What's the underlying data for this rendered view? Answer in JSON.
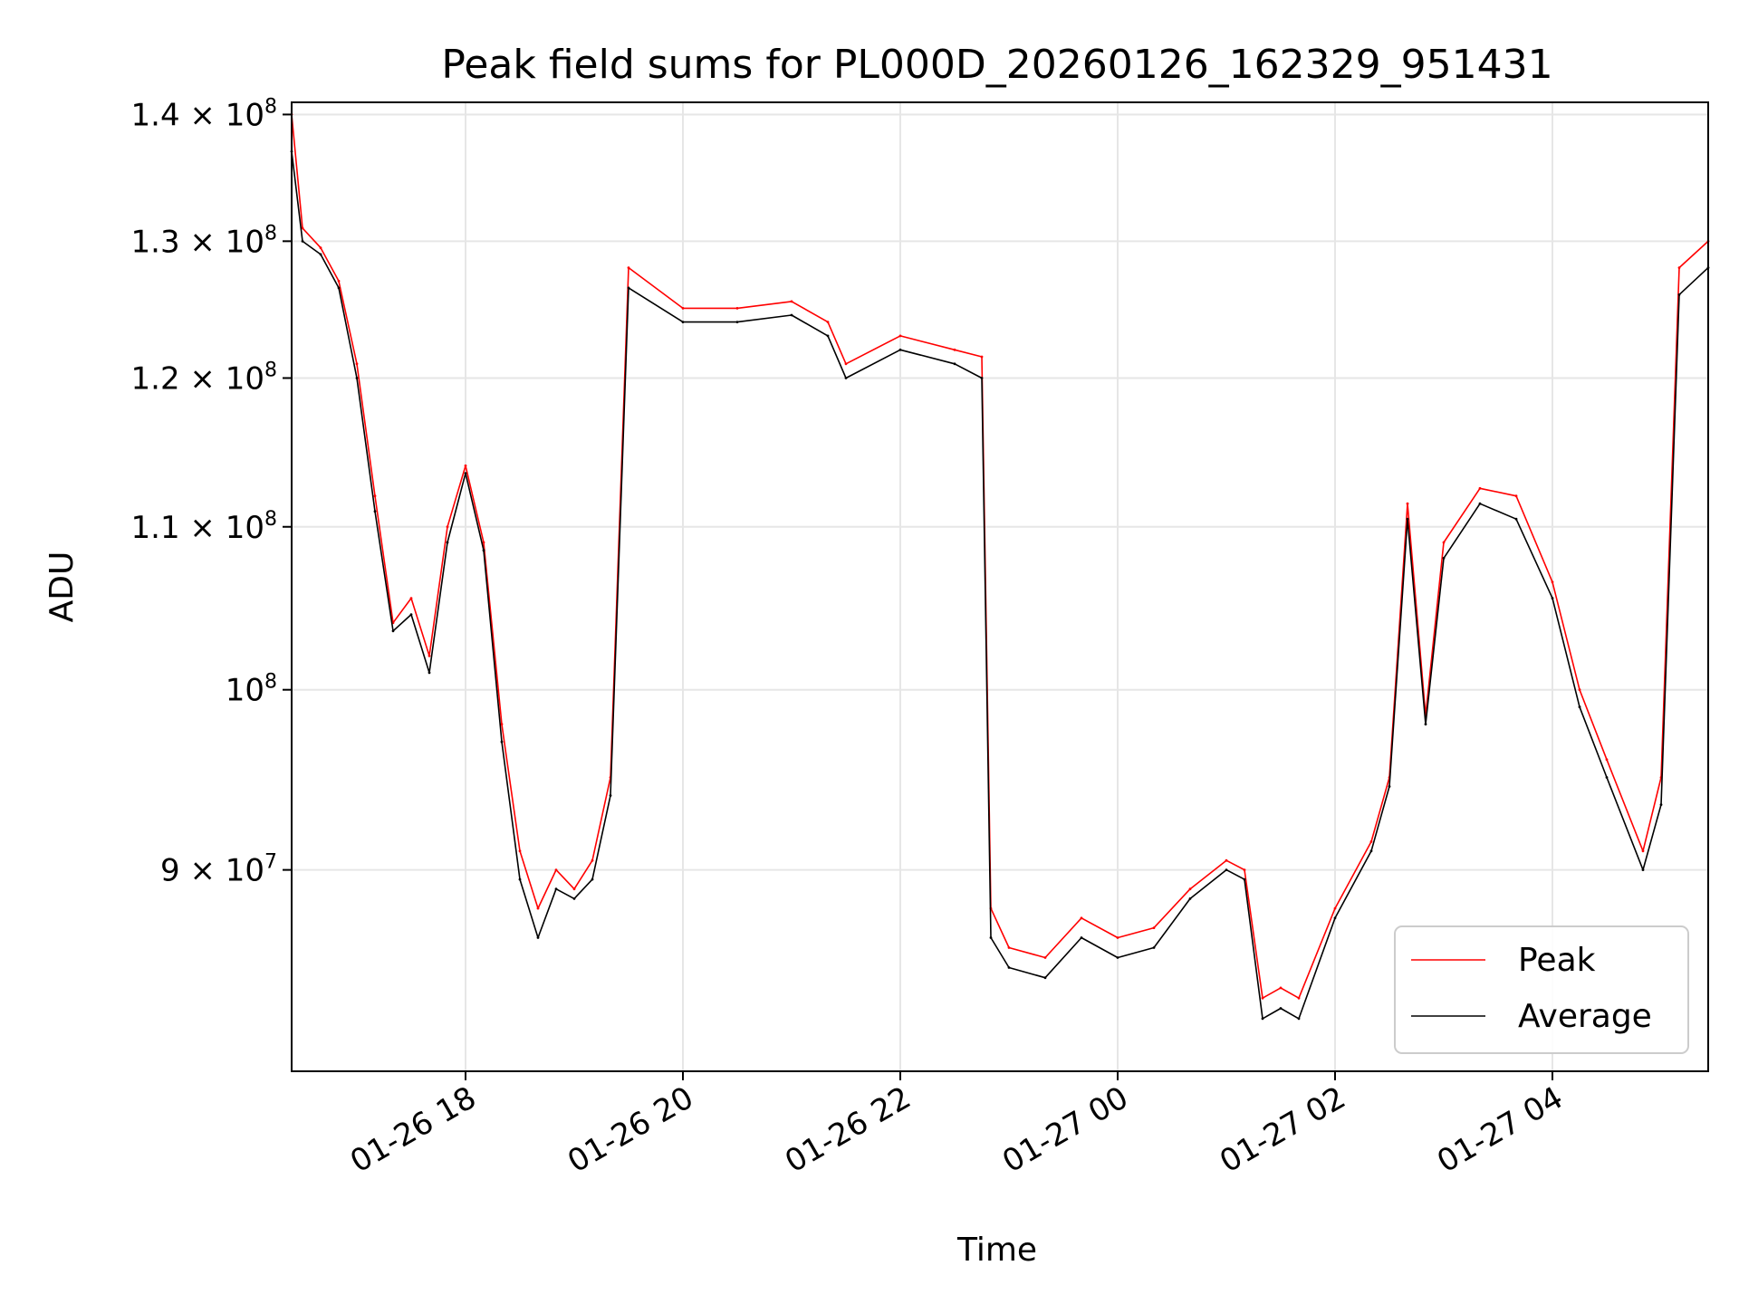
{
  "chart_data": {
    "type": "line",
    "title": "Peak field sums for PL000D_20260126_162329_951431",
    "xlabel": "Time",
    "ylabel": "ADU",
    "y_scale": "log",
    "ylim": [
      80000000,
      141000000
    ],
    "x_range_hours": [
      "2026-01-26T16:24",
      "2026-01-27T05:26"
    ],
    "x_ticks": [
      {
        "label": "01-26 18",
        "t": "2026-01-26T18:00"
      },
      {
        "label": "01-26 20",
        "t": "2026-01-26T20:00"
      },
      {
        "label": "01-26 22",
        "t": "2026-01-26T22:00"
      },
      {
        "label": "01-27 00",
        "t": "2026-01-27T00:00"
      },
      {
        "label": "01-27 02",
        "t": "2026-01-27T02:00"
      },
      {
        "label": "01-27 04",
        "t": "2026-01-27T04:00"
      }
    ],
    "y_ticks": [
      {
        "value": 90000000,
        "mantissa": "9",
        "exp": "7",
        "label": "9 × 10^7"
      },
      {
        "value": 100000000,
        "mantissa": "",
        "exp": "8",
        "label": "10^8"
      },
      {
        "value": 110000000,
        "mantissa": "1.1",
        "exp": "8",
        "label": "1.1 × 10^8"
      },
      {
        "value": 120000000,
        "mantissa": "1.2",
        "exp": "8",
        "label": "1.2 × 10^8"
      },
      {
        "value": 130000000,
        "mantissa": "1.3",
        "exp": "8",
        "label": "1.3 × 10^8"
      },
      {
        "value": 140000000,
        "mantissa": "1.4",
        "exp": "8",
        "label": "1.4 × 10^8"
      }
    ],
    "grid": true,
    "legend_position": "lower right",
    "series": [
      {
        "name": "Peak",
        "color": "#ff0000",
        "x": [
          "2026-01-26T16:24",
          "2026-01-26T16:30",
          "2026-01-26T16:40",
          "2026-01-26T16:50",
          "2026-01-26T17:00",
          "2026-01-26T17:10",
          "2026-01-26T17:20",
          "2026-01-26T17:30",
          "2026-01-26T17:40",
          "2026-01-26T17:50",
          "2026-01-26T18:00",
          "2026-01-26T18:10",
          "2026-01-26T18:20",
          "2026-01-26T18:30",
          "2026-01-26T18:40",
          "2026-01-26T18:50",
          "2026-01-26T19:00",
          "2026-01-26T19:10",
          "2026-01-26T19:20",
          "2026-01-26T19:30",
          "2026-01-26T20:00",
          "2026-01-26T20:30",
          "2026-01-26T21:00",
          "2026-01-26T21:20",
          "2026-01-26T21:30",
          "2026-01-26T22:00",
          "2026-01-26T22:30",
          "2026-01-26T22:45",
          "2026-01-26T22:50",
          "2026-01-26T23:00",
          "2026-01-26T23:20",
          "2026-01-26T23:40",
          "2026-01-27T00:00",
          "2026-01-27T00:20",
          "2026-01-27T00:40",
          "2026-01-27T01:00",
          "2026-01-27T01:10",
          "2026-01-27T01:20",
          "2026-01-27T01:30",
          "2026-01-27T01:40",
          "2026-01-27T02:00",
          "2026-01-27T02:20",
          "2026-01-27T02:30",
          "2026-01-27T02:40",
          "2026-01-27T02:50",
          "2026-01-27T03:00",
          "2026-01-27T03:20",
          "2026-01-27T03:40",
          "2026-01-27T04:00",
          "2026-01-27T04:15",
          "2026-01-27T04:30",
          "2026-01-27T04:50",
          "2026-01-27T05:00",
          "2026-01-27T05:10",
          "2026-01-27T05:26"
        ],
        "values": [
          140000000,
          131000000,
          129500000,
          127000000,
          121000000,
          112000000,
          104000000,
          105500000,
          102000000,
          110000000,
          114000000,
          109000000,
          98000000,
          91000000,
          88000000,
          90000000,
          89000000,
          90500000,
          95000000,
          128000000,
          125000000,
          125000000,
          125500000,
          124000000,
          121000000,
          123000000,
          122000000,
          121500000,
          88000000,
          86000000,
          85500000,
          87500000,
          86500000,
          87000000,
          89000000,
          90500000,
          90000000,
          83500000,
          84000000,
          83500000,
          88000000,
          91500000,
          95000000,
          111500000,
          98500000,
          109000000,
          112500000,
          112000000,
          106500000,
          100000000,
          96000000,
          91000000,
          95000000,
          128000000,
          130000000
        ]
      },
      {
        "name": "Average",
        "color": "#000000",
        "x": [
          "2026-01-26T16:24",
          "2026-01-26T16:30",
          "2026-01-26T16:40",
          "2026-01-26T16:50",
          "2026-01-26T17:00",
          "2026-01-26T17:10",
          "2026-01-26T17:20",
          "2026-01-26T17:30",
          "2026-01-26T17:40",
          "2026-01-26T17:50",
          "2026-01-26T18:00",
          "2026-01-26T18:10",
          "2026-01-26T18:20",
          "2026-01-26T18:30",
          "2026-01-26T18:40",
          "2026-01-26T18:50",
          "2026-01-26T19:00",
          "2026-01-26T19:10",
          "2026-01-26T19:20",
          "2026-01-26T19:30",
          "2026-01-26T20:00",
          "2026-01-26T20:30",
          "2026-01-26T21:00",
          "2026-01-26T21:20",
          "2026-01-26T21:30",
          "2026-01-26T22:00",
          "2026-01-26T22:30",
          "2026-01-26T22:45",
          "2026-01-26T22:50",
          "2026-01-26T23:00",
          "2026-01-26T23:20",
          "2026-01-26T23:40",
          "2026-01-27T00:00",
          "2026-01-27T00:20",
          "2026-01-27T00:40",
          "2026-01-27T01:00",
          "2026-01-27T01:10",
          "2026-01-27T01:20",
          "2026-01-27T01:30",
          "2026-01-27T01:40",
          "2026-01-27T02:00",
          "2026-01-27T02:20",
          "2026-01-27T02:30",
          "2026-01-27T02:40",
          "2026-01-27T02:50",
          "2026-01-27T03:00",
          "2026-01-27T03:20",
          "2026-01-27T03:40",
          "2026-01-27T04:00",
          "2026-01-27T04:15",
          "2026-01-27T04:30",
          "2026-01-27T04:50",
          "2026-01-27T05:00",
          "2026-01-27T05:10",
          "2026-01-27T05:26"
        ],
        "values": [
          137000000,
          130000000,
          129000000,
          126500000,
          120000000,
          111000000,
          103500000,
          104500000,
          101000000,
          109000000,
          113500000,
          108500000,
          97000000,
          89500000,
          86500000,
          89000000,
          88500000,
          89500000,
          94000000,
          126500000,
          124000000,
          124000000,
          124500000,
          123000000,
          120000000,
          122000000,
          121000000,
          120000000,
          86500000,
          85000000,
          84500000,
          86500000,
          85500000,
          86000000,
          88500000,
          90000000,
          89500000,
          82500000,
          83000000,
          82500000,
          87500000,
          91000000,
          94500000,
          110500000,
          98000000,
          108000000,
          111500000,
          110500000,
          105500000,
          99000000,
          95000000,
          90000000,
          93500000,
          126000000,
          128000000
        ]
      }
    ]
  }
}
